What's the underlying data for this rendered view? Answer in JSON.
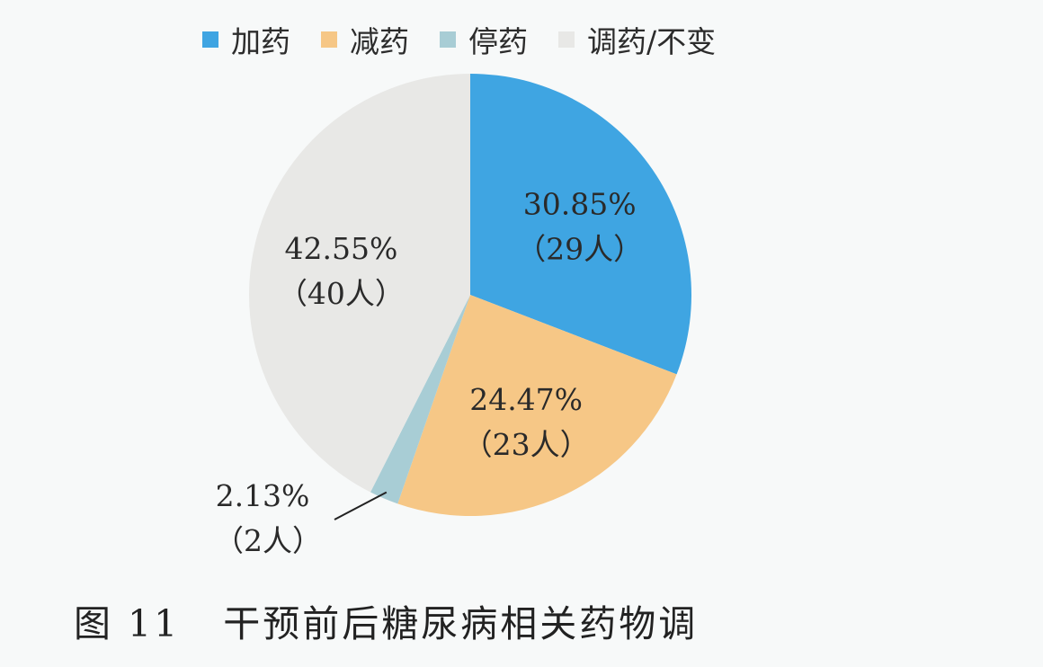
{
  "chart_data": {
    "type": "pie",
    "title": "",
    "slices": [
      {
        "name": "加药",
        "percent": 30.85,
        "count": 29,
        "color": "#3fa5e2",
        "pct_label": "30.85%",
        "count_label": "（29人）"
      },
      {
        "name": "减药",
        "percent": 24.47,
        "count": 23,
        "color": "#f6c786",
        "pct_label": "24.47%",
        "count_label": "（23人）"
      },
      {
        "name": "停药",
        "percent": 2.13,
        "count": 2,
        "color": "#a8cdd5",
        "pct_label": "2.13%",
        "count_label": "（2人）"
      },
      {
        "name": "调药/不变",
        "percent": 42.55,
        "count": 40,
        "color": "#e8e8e6",
        "pct_label": "42.55%",
        "count_label": "（40人）"
      }
    ],
    "legend_position": "top"
  },
  "caption": {
    "figure_number": "图 11",
    "text": "干预前后糖尿病相关药物调"
  }
}
